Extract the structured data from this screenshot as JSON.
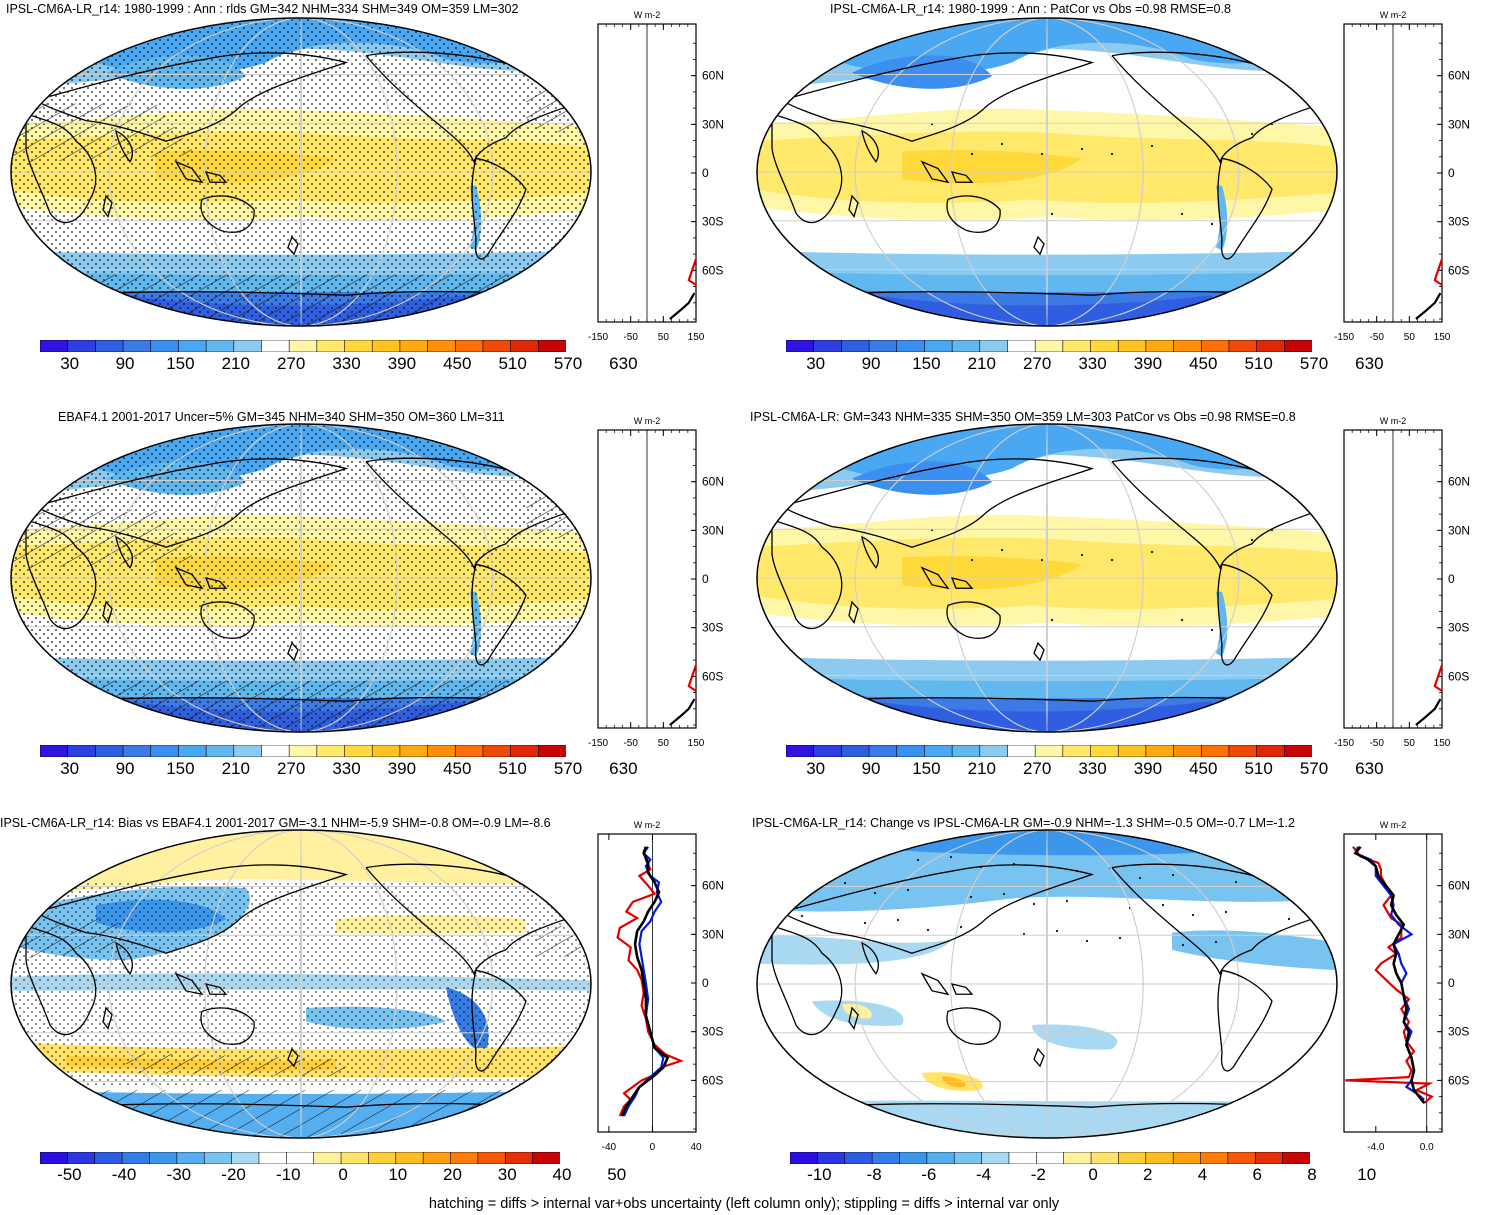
{
  "footer": "hatching = diffs > internal var+obs uncertainty (left column only); stippling = diffs > internal var only",
  "chart_data": [
    {
      "type": "heatmap",
      "title": "IPSL-CM6A-LR_r14: 1980-1999 : Ann : rlds GM=342 NHM=334 SHM=349 OM=359 LM=302",
      "colorbar": {
        "ticks": [
          "30",
          "90",
          "150",
          "210",
          "270",
          "330",
          "390",
          "450",
          "510",
          "570",
          "630"
        ],
        "range": [
          0,
          660
        ],
        "palette": "absolute"
      },
      "profile": {
        "unit": "W m-2",
        "xticks": [
          "-150",
          "-50",
          "50",
          "150"
        ],
        "yticks": [
          "60N",
          "30N",
          "0",
          "30S",
          "60S"
        ]
      }
    },
    {
      "type": "heatmap",
      "title": "IPSL-CM6A-LR_r14: 1980-1999 : Ann : PatCor vs Obs =0.98 RMSE=0.8",
      "colorbar": {
        "ticks": [
          "30",
          "90",
          "150",
          "210",
          "270",
          "330",
          "390",
          "450",
          "510",
          "570",
          "630"
        ],
        "range": [
          0,
          660
        ],
        "palette": "absolute"
      },
      "profile": {
        "unit": "W m-2",
        "xticks": [
          "-150",
          "-50",
          "50",
          "150"
        ],
        "yticks": [
          "60N",
          "30N",
          "0",
          "30S",
          "60S"
        ]
      }
    },
    {
      "type": "heatmap",
      "title": "EBAF4.1 2001-2017 Uncer=5% GM=345 NHM=340 SHM=350 OM=360 LM=311",
      "colorbar": {
        "ticks": [
          "30",
          "90",
          "150",
          "210",
          "270",
          "330",
          "390",
          "450",
          "510",
          "570",
          "630"
        ],
        "range": [
          0,
          660
        ],
        "palette": "absolute"
      },
      "profile": {
        "unit": "W m-2",
        "xticks": [
          "-150",
          "-50",
          "50",
          "150"
        ],
        "yticks": [
          "60N",
          "30N",
          "0",
          "30S",
          "60S"
        ]
      }
    },
    {
      "type": "heatmap",
      "title": "IPSL-CM6A-LR: GM=343 NHM=335 SHM=350 OM=359 LM=303 PatCor vs Obs =0.98 RMSE=0.8",
      "colorbar": {
        "ticks": [
          "30",
          "90",
          "150",
          "210",
          "270",
          "330",
          "390",
          "450",
          "510",
          "570",
          "630"
        ],
        "range": [
          0,
          660
        ],
        "palette": "absolute"
      },
      "profile": {
        "unit": "W m-2",
        "xticks": [
          "-150",
          "-50",
          "50",
          "150"
        ],
        "yticks": [
          "60N",
          "30N",
          "0",
          "30S",
          "60S"
        ]
      }
    },
    {
      "type": "heatmap",
      "title": "IPSL-CM6A-LR_r14: Bias vs EBAF4.1 2001-2017 GM=-3.1 NHM=-5.9 SHM=-0.8 OM=-0.9 LM=-8.6",
      "colorbar": {
        "ticks": [
          "-50",
          "-40",
          "-30",
          "-20",
          "-10",
          "0",
          "10",
          "20",
          "30",
          "40",
          "50"
        ],
        "range": [
          -55,
          55
        ],
        "palette": "diff"
      },
      "profile": {
        "unit": "W m-2",
        "xticks": [
          "-40",
          "0",
          "40"
        ],
        "yticks": [
          "60N",
          "30N",
          "0",
          "30S",
          "60S"
        ]
      }
    },
    {
      "type": "heatmap",
      "title": "IPSL-CM6A-LR_r14: Change vs IPSL-CM6A-LR GM=-0.9 NHM=-1.3 SHM=-0.5 OM=-0.7 LM=-1.2",
      "colorbar": {
        "ticks": [
          "-10",
          "-8",
          "-6",
          "-4",
          "-2",
          "0",
          "2",
          "4",
          "6",
          "8",
          "10"
        ],
        "range": [
          -11,
          11
        ],
        "palette": "diff"
      },
      "profile": {
        "unit": "W m-2",
        "xticks": [
          "-4.0",
          "0.0"
        ],
        "yticks": [
          "60N",
          "30N",
          "0",
          "30S",
          "60S"
        ]
      }
    }
  ]
}
